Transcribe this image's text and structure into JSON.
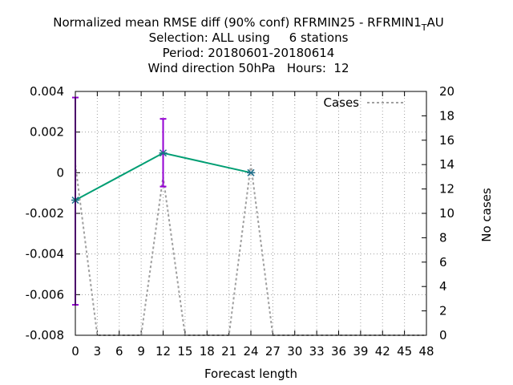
{
  "chart_data": {
    "type": "line",
    "title_lines": [
      "Normalized mean RMSE diff (90% conf) RFRMIN25 - RFRMIN1",
      "Selection: ALL using     6 stations",
      "Period: 20180601-20180614",
      "Wind direction 50hPa   Hours:  12"
    ],
    "title_tail": {
      "subscript": "T",
      "after": "AU"
    },
    "xlabel": "Forecast length",
    "ylabel": "",
    "y2label": "No cases",
    "xlim": [
      0,
      48
    ],
    "ylim": [
      -0.008,
      0.004
    ],
    "y2lim": [
      0,
      20
    ],
    "x_ticks": [
      0,
      3,
      6,
      9,
      12,
      15,
      18,
      21,
      24,
      27,
      30,
      33,
      36,
      39,
      42,
      45,
      48
    ],
    "y_ticks": [
      -0.008,
      -0.006,
      -0.004,
      -0.002,
      0,
      0.002,
      0.004
    ],
    "y_tick_labels": [
      "-0.008",
      "-0.006",
      "-0.004",
      "-0.002",
      "0",
      "0.002",
      "0.004"
    ],
    "y2_ticks": [
      0,
      2,
      4,
      6,
      8,
      10,
      12,
      14,
      16,
      18,
      20
    ],
    "grid": true,
    "legend_position": "top-right",
    "series": [
      {
        "name": "",
        "axis": "y",
        "color": "#009e73",
        "marker_color": "#1f6f8b",
        "points": [
          {
            "x": 0,
            "y": -0.00135,
            "err_low": -0.0065,
            "err_high": 0.0037
          },
          {
            "x": 12,
            "y": 0.00097,
            "err_low": -0.00068,
            "err_high": 0.00265
          },
          {
            "x": 24,
            "y": 0.0,
            "err_low": 0.0,
            "err_high": 0.0
          }
        ],
        "errorbar_color": "#9400d3"
      },
      {
        "name": "Cases",
        "axis": "y2",
        "color": "#a0a0a0",
        "dashed": true,
        "x": [
          0,
          3,
          6,
          9,
          12,
          15,
          18,
          21,
          24,
          27,
          30,
          33,
          36,
          39,
          42,
          45,
          48
        ],
        "values": [
          14,
          0,
          0,
          0,
          13,
          0,
          0,
          0,
          14,
          0,
          0,
          0,
          0,
          0,
          0,
          0,
          0
        ]
      }
    ]
  }
}
